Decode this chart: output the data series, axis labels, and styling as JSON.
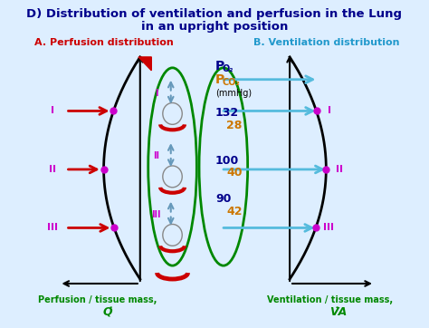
{
  "title_line1": "D) Distribution of ventilation and perfusion in the Lung",
  "title_line2": "in an upright position",
  "title_color": "#00008B",
  "title_fontsize": 9.5,
  "bg_color": "#ddeeff",
  "left_label": "A. Perfusion distribution",
  "right_label": "B. Ventilation distribution",
  "left_label_color": "#cc0000",
  "right_label_color": "#2299cc",
  "xlabel_left": "Perfusion / tissue mass,",
  "xlabel_left_q": "Q̇",
  "xlabel_right": "Ventilation / tissue mass,",
  "xlabel_right_v": "V̇A",
  "xlabel_color": "#008800",
  "roman_labels": [
    "I",
    "II",
    "III"
  ],
  "roman_color": "#cc00cc",
  "mmhg": "(mmHg)",
  "po2_values": [
    "132",
    "100",
    "90"
  ],
  "pco2_values": [
    "28",
    "40",
    "42"
  ],
  "po2_color": "#00008B",
  "pco2_color": "#cc7700",
  "lung_outline_color": "#008800",
  "red_color": "#cc0000",
  "blue_arrow_color": "#55bbdd"
}
